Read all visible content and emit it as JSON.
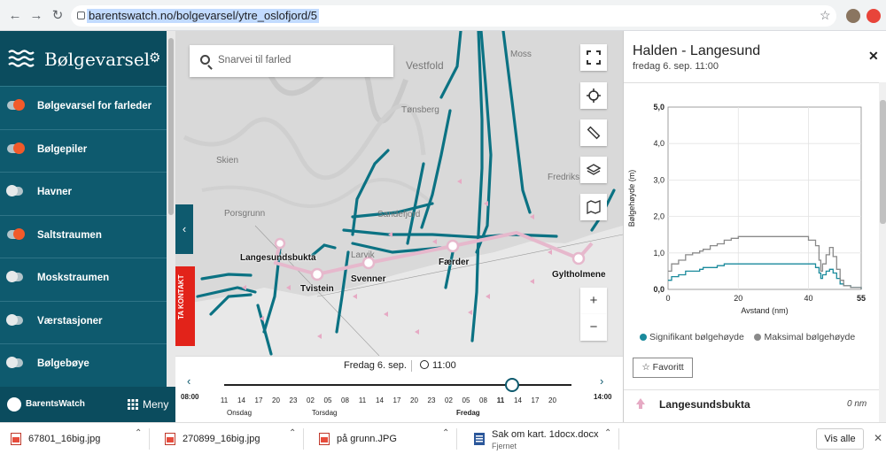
{
  "browser": {
    "url": "barentswatch.no/bolgevarsel/ytre_oslofjord/5"
  },
  "sidebar": {
    "title": "Bølgevarsel",
    "items": [
      {
        "label": "Bølgevarsel for farleder",
        "on": true
      },
      {
        "label": "Bølgepiler",
        "on": true
      },
      {
        "label": "Havner",
        "on": false
      },
      {
        "label": "Saltstraumen",
        "on": true
      },
      {
        "label": "Moskstraumen",
        "on": false
      },
      {
        "label": "Værstasjoner",
        "on": false
      },
      {
        "label": "Bølgebøye",
        "on": false
      }
    ],
    "footer_brand": "BarentsWatch",
    "footer_menu": "Meny"
  },
  "map": {
    "search_placeholder": "Snarvei til farled",
    "contact_tab": "TA KONTAKT",
    "route_labels": [
      "Langesundsbukta",
      "Tvistein",
      "Svenner",
      "Færder",
      "Gyltholmene"
    ],
    "places": [
      "Vestfold",
      "Moss",
      "Tønsberg",
      "Skien",
      "Fredriks",
      "Porsgrunn",
      "Sandefjord",
      "Larvik"
    ]
  },
  "timeline": {
    "date": "Fredag 6. sep.",
    "time": "11:00",
    "prev_time": "08:00",
    "next_time": "14:00",
    "ticks": [
      "11",
      "14",
      "17",
      "20",
      "23",
      "02",
      "05",
      "08",
      "11",
      "14",
      "17",
      "20",
      "23",
      "02",
      "05",
      "08",
      "11",
      "14",
      "17",
      "20"
    ],
    "days": [
      "Onsdag",
      "Torsdag",
      "Fredag"
    ]
  },
  "panel": {
    "title": "Halden - Langesund",
    "subtitle": "fredag 6. sep. 11:00",
    "favorite_label": "Favoritt",
    "location_name": "Langesundsbukta",
    "location_distance": "0 nm"
  },
  "colors": {
    "teal": "#0e5a6e",
    "significant": "#1a8a9c",
    "maximal": "#8a8a8a",
    "toggle_on": "#f25a2a",
    "route": "#e6b8cc"
  },
  "chart_data": {
    "type": "line",
    "title": "",
    "xlabel": "Avstand (nm)",
    "ylabel": "Bølgehøyde (m)",
    "xlim": [
      0,
      55
    ],
    "ylim": [
      0,
      5
    ],
    "xticks": [
      "0",
      "20",
      "40",
      "55"
    ],
    "yticks": [
      "0,0",
      "1,0",
      "2,0",
      "3,0",
      "4,0",
      "5,0"
    ],
    "series": [
      {
        "name": "Signifikant bølgehøyde",
        "x": [
          0,
          1,
          3,
          5,
          7,
          9,
          10,
          12,
          14,
          16,
          18,
          20,
          24,
          28,
          32,
          36,
          40,
          42,
          43,
          43.5,
          44,
          45,
          46,
          47,
          48,
          49,
          50,
          52,
          55
        ],
        "y": [
          0.25,
          0.35,
          0.4,
          0.5,
          0.5,
          0.55,
          0.6,
          0.6,
          0.65,
          0.7,
          0.7,
          0.7,
          0.7,
          0.7,
          0.7,
          0.7,
          0.7,
          0.6,
          0.45,
          0.3,
          0.4,
          0.5,
          0.55,
          0.45,
          0.3,
          0.15,
          0.1,
          0.05,
          0.0
        ]
      },
      {
        "name": "Maksimal bølgehøyde",
        "x": [
          0,
          1,
          3,
          5,
          7,
          9,
          10,
          12,
          14,
          16,
          18,
          20,
          24,
          28,
          32,
          36,
          40,
          42,
          43,
          43.5,
          44,
          45,
          46,
          47,
          48,
          49,
          50,
          52,
          55
        ],
        "y": [
          0.5,
          0.7,
          0.8,
          0.95,
          1.0,
          1.05,
          1.1,
          1.2,
          1.25,
          1.35,
          1.4,
          1.45,
          1.45,
          1.45,
          1.45,
          1.45,
          1.35,
          1.2,
          0.8,
          0.5,
          0.7,
          0.95,
          1.15,
          0.9,
          0.55,
          0.25,
          0.1,
          0.05,
          0.0
        ]
      }
    ],
    "legend": "bottom",
    "grid": true
  },
  "downloads": [
    {
      "name": "67801_16big.jpg",
      "status": ""
    },
    {
      "name": "270899_16big.jpg",
      "status": ""
    },
    {
      "name": "på grunn.JPG",
      "status": ""
    },
    {
      "name": "Sak om kart. 1docx.docx",
      "status": "Fjernet"
    }
  ],
  "downloads_show_all": "Vis alle"
}
